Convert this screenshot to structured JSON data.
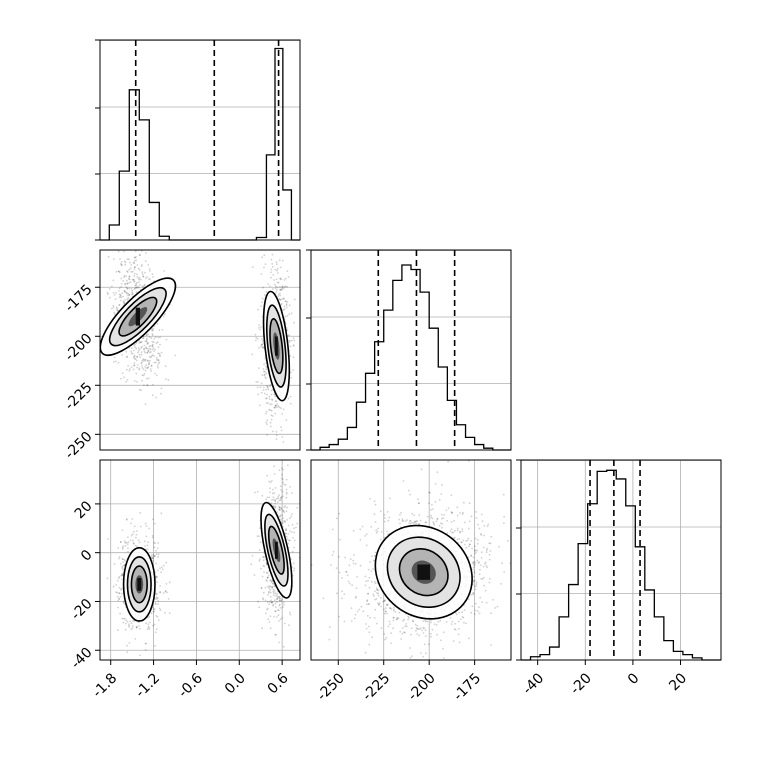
{
  "chart_data": [
    {
      "panel": "1d-marginal-param-1",
      "type": "histogram",
      "xlim": [
        -1.95,
        0.85
      ],
      "grid": true,
      "x_tick_labels": [],
      "y_tick_labels": [],
      "bins": [
        {
          "x0": -1.95,
          "x1": -1.82,
          "count": 0
        },
        {
          "x0": -1.82,
          "x1": -1.68,
          "count": 12
        },
        {
          "x0": -1.68,
          "x1": -1.54,
          "count": 55
        },
        {
          "x0": -1.54,
          "x1": -1.4,
          "count": 120
        },
        {
          "x0": -1.4,
          "x1": -1.26,
          "count": 96
        },
        {
          "x0": -1.26,
          "x1": -1.12,
          "count": 30
        },
        {
          "x0": -1.12,
          "x1": -0.98,
          "count": 3
        },
        {
          "x0": -0.98,
          "x1": 0.24,
          "count": 0
        },
        {
          "x0": 0.24,
          "x1": 0.38,
          "count": 2
        },
        {
          "x0": 0.38,
          "x1": 0.5,
          "count": 68
        },
        {
          "x0": 0.5,
          "x1": 0.61,
          "count": 153
        },
        {
          "x0": 0.61,
          "x1": 0.73,
          "count": 40
        },
        {
          "x0": 0.73,
          "x1": 0.85,
          "count": 0
        }
      ],
      "ylim": [
        0,
        155
      ],
      "quantile_lines": [
        -1.45,
        -0.35,
        0.55
      ]
    },
    {
      "panel": "2d-param-1-vs-param-2",
      "type": "scatter",
      "xlim": [
        -1.95,
        0.85
      ],
      "ylim": [
        -258,
        -156
      ],
      "grid": true,
      "y_tick_labels": [
        "-175",
        "-200",
        "-225",
        "-250"
      ],
      "y_ticks": [
        -175,
        -200,
        -225,
        -250
      ],
      "clusters": [
        {
          "center": [
            -1.42,
            -190
          ],
          "sx": 0.12,
          "sy": 13,
          "rot": -0.35,
          "n": 700
        },
        {
          "center": [
            0.52,
            -205
          ],
          "sx": 0.08,
          "sy": 14,
          "rot": 0.05,
          "n": 700
        }
      ]
    },
    {
      "panel": "1d-marginal-param-2",
      "type": "histogram",
      "xlim": [
        -265,
        -155
      ],
      "grid": true,
      "x_tick_labels": [],
      "y_tick_labels": [],
      "bins": [
        {
          "x0": -265,
          "x1": -260,
          "count": 0
        },
        {
          "x0": -260,
          "x1": -255,
          "count": 3
        },
        {
          "x0": -255,
          "x1": -250,
          "count": 6
        },
        {
          "x0": -250,
          "x1": -245,
          "count": 12
        },
        {
          "x0": -245,
          "x1": -240,
          "count": 25
        },
        {
          "x0": -240,
          "x1": -235,
          "count": 53
        },
        {
          "x0": -235,
          "x1": -230,
          "count": 85
        },
        {
          "x0": -230,
          "x1": -225,
          "count": 120
        },
        {
          "x0": -225,
          "x1": -220,
          "count": 155
        },
        {
          "x0": -220,
          "x1": -215,
          "count": 188
        },
        {
          "x0": -215,
          "x1": -210,
          "count": 205
        },
        {
          "x0": -210,
          "x1": -205,
          "count": 200
        },
        {
          "x0": -205,
          "x1": -200,
          "count": 175
        },
        {
          "x0": -200,
          "x1": -195,
          "count": 135
        },
        {
          "x0": -195,
          "x1": -190,
          "count": 92
        },
        {
          "x0": -190,
          "x1": -185,
          "count": 55
        },
        {
          "x0": -185,
          "x1": -180,
          "count": 28
        },
        {
          "x0": -180,
          "x1": -175,
          "count": 14
        },
        {
          "x0": -175,
          "x1": -170,
          "count": 6
        },
        {
          "x0": -170,
          "x1": -165,
          "count": 2
        },
        {
          "x0": -165,
          "x1": -155,
          "count": 0
        }
      ],
      "ylim": [
        0,
        215
      ],
      "quantile_lines": [
        -228,
        -207,
        -186
      ]
    },
    {
      "panel": "2d-param-1-vs-param-3",
      "type": "scatter",
      "xlim": [
        -1.95,
        0.85
      ],
      "ylim": [
        -44,
        38
      ],
      "grid": true,
      "x_tick_labels": [
        "-1.8",
        "-1.2",
        "-0.6",
        "0.0",
        "0.6"
      ],
      "x_ticks": [
        -1.8,
        -1.2,
        -0.6,
        0.0,
        0.6
      ],
      "y_tick_labels": [
        "20",
        "0",
        "-20",
        "-40"
      ],
      "y_ticks": [
        20,
        0,
        -20,
        -40
      ],
      "clusters": [
        {
          "center": [
            -1.4,
            -13
          ],
          "sx": 0.11,
          "sy": 7.5,
          "rot": 0.0,
          "n": 700
        },
        {
          "center": [
            0.52,
            1
          ],
          "sx": 0.08,
          "sy": 10,
          "rot": 0.1,
          "n": 700
        }
      ]
    },
    {
      "panel": "2d-param-2-vs-param-3",
      "type": "scatter",
      "xlim": [
        -265,
        -155
      ],
      "ylim": [
        -44,
        38
      ],
      "grid": true,
      "x_tick_labels": [
        "-250",
        "-225",
        "-200",
        "-175"
      ],
      "x_ticks": [
        -250,
        -225,
        -200,
        -175
      ],
      "y_tick_labels": [],
      "clusters": [
        {
          "center": [
            -203,
            -8
          ],
          "sx": 14,
          "sy": 9,
          "rot": -0.3,
          "n": 1400
        }
      ]
    },
    {
      "panel": "1d-marginal-param-3",
      "type": "histogram",
      "xlim": [
        -47,
        37
      ],
      "grid": true,
      "x_tick_labels": [
        "-40",
        "-20",
        "0",
        "20"
      ],
      "x_ticks": [
        -40,
        -20,
        0,
        20
      ],
      "y_tick_labels": [],
      "bins": [
        {
          "x0": -47,
          "x1": -43,
          "count": 0
        },
        {
          "x0": -43,
          "x1": -39,
          "count": 3
        },
        {
          "x0": -39,
          "x1": -35,
          "count": 5
        },
        {
          "x0": -35,
          "x1": -31,
          "count": 12
        },
        {
          "x0": -31,
          "x1": -27,
          "count": 40
        },
        {
          "x0": -27,
          "x1": -23,
          "count": 70
        },
        {
          "x0": -23,
          "x1": -19,
          "count": 108
        },
        {
          "x0": -19,
          "x1": -15,
          "count": 145
        },
        {
          "x0": -15,
          "x1": -11,
          "count": 175
        },
        {
          "x0": -11,
          "x1": -7,
          "count": 176
        },
        {
          "x0": -7,
          "x1": -3,
          "count": 168
        },
        {
          "x0": -3,
          "x1": 1,
          "count": 143
        },
        {
          "x0": 1,
          "x1": 5,
          "count": 105
        },
        {
          "x0": 5,
          "x1": 9,
          "count": 65
        },
        {
          "x0": 9,
          "x1": 13,
          "count": 40
        },
        {
          "x0": 13,
          "x1": 17,
          "count": 18
        },
        {
          "x0": 17,
          "x1": 21,
          "count": 8
        },
        {
          "x0": 21,
          "x1": 25,
          "count": 5
        },
        {
          "x0": 25,
          "x1": 29,
          "count": 2
        },
        {
          "x0": 29,
          "x1": 37,
          "count": 0
        }
      ],
      "ylim": [
        0,
        180
      ],
      "quantile_lines": [
        -18,
        -8,
        3
      ]
    }
  ]
}
